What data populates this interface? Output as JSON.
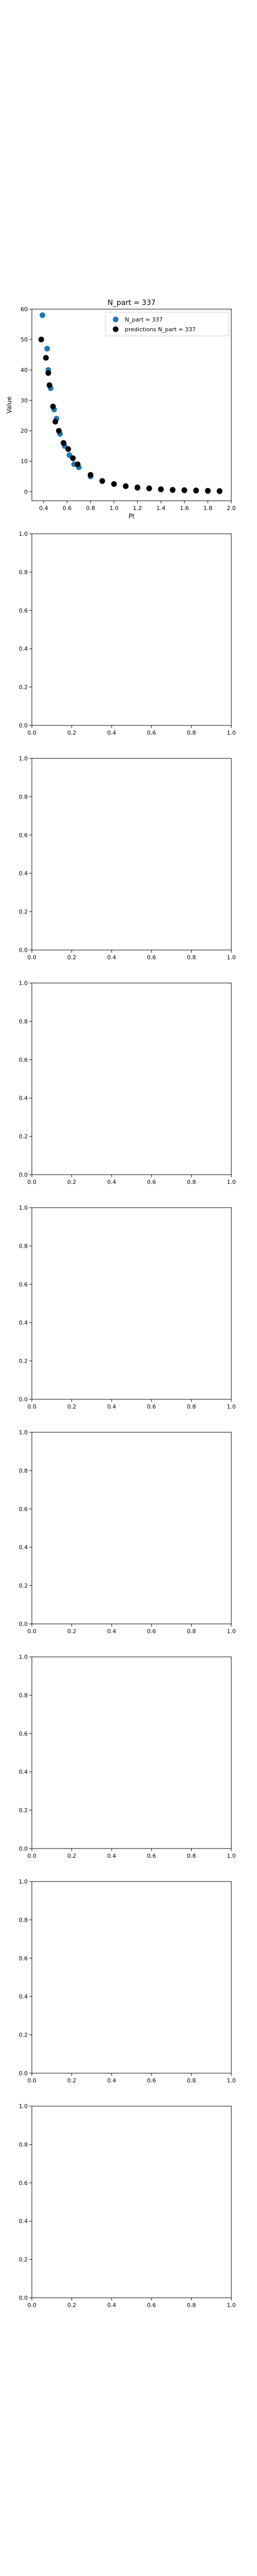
{
  "colors": {
    "series_observed": "#1f77b4",
    "series_predicted": "#000000",
    "axes": "#000000",
    "background": "#ffffff"
  },
  "chart_data": [
    {
      "type": "scatter",
      "title": "N_part = 337",
      "xlabel": "Pt",
      "ylabel": "Value",
      "xlim": [
        0.3,
        2.0
      ],
      "ylim": [
        -3,
        60
      ],
      "xticks": [
        0.4,
        0.6,
        0.8,
        1.0,
        1.2,
        1.4,
        1.6,
        1.8,
        2.0
      ],
      "xticklabels": [
        "0.4",
        "0.6",
        "0.8",
        "1.0",
        "1.2",
        "1.4",
        "1.6",
        "1.8",
        "2.0"
      ],
      "yticks": [
        0,
        10,
        20,
        30,
        40,
        50,
        60
      ],
      "yticklabels": [
        "0",
        "10",
        "20",
        "30",
        "40",
        "50",
        "60"
      ],
      "grid": false,
      "legend": "top-right",
      "series": [
        {
          "name": "N_part = 337",
          "color": "#1f77b4",
          "x": [
            0.39,
            0.43,
            0.44,
            0.46,
            0.49,
            0.51,
            0.54,
            0.58,
            0.62,
            0.66,
            0.7,
            0.8,
            0.9,
            1.0,
            1.1,
            1.2,
            1.3,
            1.4,
            1.5,
            1.6,
            1.7,
            1.8,
            1.9
          ],
          "y": [
            58,
            47,
            40,
            34,
            27,
            24,
            19,
            15,
            12,
            9,
            8,
            5,
            3.5,
            2.5,
            1.8,
            1.2,
            1.0,
            0.7,
            0.5,
            0.4,
            0.3,
            0.2,
            0.1
          ]
        },
        {
          "name": "predictions N_part = 337",
          "color": "#000000",
          "x": [
            0.38,
            0.42,
            0.44,
            0.45,
            0.48,
            0.5,
            0.53,
            0.57,
            0.61,
            0.65,
            0.69,
            0.8,
            0.9,
            1.0,
            1.1,
            1.2,
            1.3,
            1.4,
            1.5,
            1.6,
            1.7,
            1.8,
            1.9
          ],
          "y": [
            50,
            44,
            39,
            35,
            28,
            23,
            20,
            16,
            14,
            11,
            9,
            5.5,
            3.5,
            2.5,
            1.8,
            1.4,
            1.1,
            0.8,
            0.6,
            0.5,
            0.4,
            0.3,
            0.2
          ]
        }
      ]
    },
    {
      "type": "scatter",
      "title": "",
      "xlabel": "",
      "ylabel": "",
      "xlim": [
        0,
        1
      ],
      "ylim": [
        0,
        1
      ],
      "xticklabels": [
        "0.0",
        "0.2",
        "0.4",
        "0.6",
        "0.8",
        "1.0"
      ],
      "yticklabels": [
        "0.0",
        "0.2",
        "0.4",
        "0.6",
        "0.8",
        "1.0"
      ],
      "series": []
    },
    {
      "type": "scatter",
      "title": "",
      "xlabel": "",
      "ylabel": "",
      "xlim": [
        0,
        1
      ],
      "ylim": [
        0,
        1
      ],
      "xticklabels": [
        "0.0",
        "0.2",
        "0.4",
        "0.6",
        "0.8",
        "1.0"
      ],
      "yticklabels": [
        "0.0",
        "0.2",
        "0.4",
        "0.6",
        "0.8",
        "1.0"
      ],
      "series": []
    },
    {
      "type": "scatter",
      "title": "",
      "xlabel": "",
      "ylabel": "",
      "xlim": [
        0,
        1
      ],
      "ylim": [
        0,
        1
      ],
      "xticklabels": [
        "0.0",
        "0.2",
        "0.4",
        "0.6",
        "0.8",
        "1.0"
      ],
      "yticklabels": [
        "0.0",
        "0.2",
        "0.4",
        "0.6",
        "0.8",
        "1.0"
      ],
      "series": []
    },
    {
      "type": "scatter",
      "title": "",
      "xlabel": "",
      "ylabel": "",
      "xlim": [
        0,
        1
      ],
      "ylim": [
        0,
        1
      ],
      "xticklabels": [
        "0.0",
        "0.2",
        "0.4",
        "0.6",
        "0.8",
        "1.0"
      ],
      "yticklabels": [
        "0.0",
        "0.2",
        "0.4",
        "0.6",
        "0.8",
        "1.0"
      ],
      "series": []
    },
    {
      "type": "scatter",
      "title": "",
      "xlabel": "",
      "ylabel": "",
      "xlim": [
        0,
        1
      ],
      "ylim": [
        0,
        1
      ],
      "xticklabels": [
        "0.0",
        "0.2",
        "0.4",
        "0.6",
        "0.8",
        "1.0"
      ],
      "yticklabels": [
        "0.0",
        "0.2",
        "0.4",
        "0.6",
        "0.8",
        "1.0"
      ],
      "series": []
    },
    {
      "type": "scatter",
      "title": "",
      "xlabel": "",
      "ylabel": "",
      "xlim": [
        0,
        1
      ],
      "ylim": [
        0,
        1
      ],
      "xticklabels": [
        "0.0",
        "0.2",
        "0.4",
        "0.6",
        "0.8",
        "1.0"
      ],
      "yticklabels": [
        "0.0",
        "0.2",
        "0.4",
        "0.6",
        "0.8",
        "1.0"
      ],
      "series": []
    },
    {
      "type": "scatter",
      "title": "",
      "xlabel": "",
      "ylabel": "",
      "xlim": [
        0,
        1
      ],
      "ylim": [
        0,
        1
      ],
      "xticklabels": [
        "0.0",
        "0.2",
        "0.4",
        "0.6",
        "0.8",
        "1.0"
      ],
      "yticklabels": [
        "0.0",
        "0.2",
        "0.4",
        "0.6",
        "0.8",
        "1.0"
      ],
      "series": []
    },
    {
      "type": "scatter",
      "title": "",
      "xlabel": "",
      "ylabel": "",
      "xlim": [
        0,
        1
      ],
      "ylim": [
        0,
        1
      ],
      "xticklabels": [
        "0.0",
        "0.2",
        "0.4",
        "0.6",
        "0.8",
        "1.0"
      ],
      "yticklabels": [
        "0.0",
        "0.2",
        "0.4",
        "0.6",
        "0.8",
        "1.0"
      ],
      "series": []
    }
  ]
}
